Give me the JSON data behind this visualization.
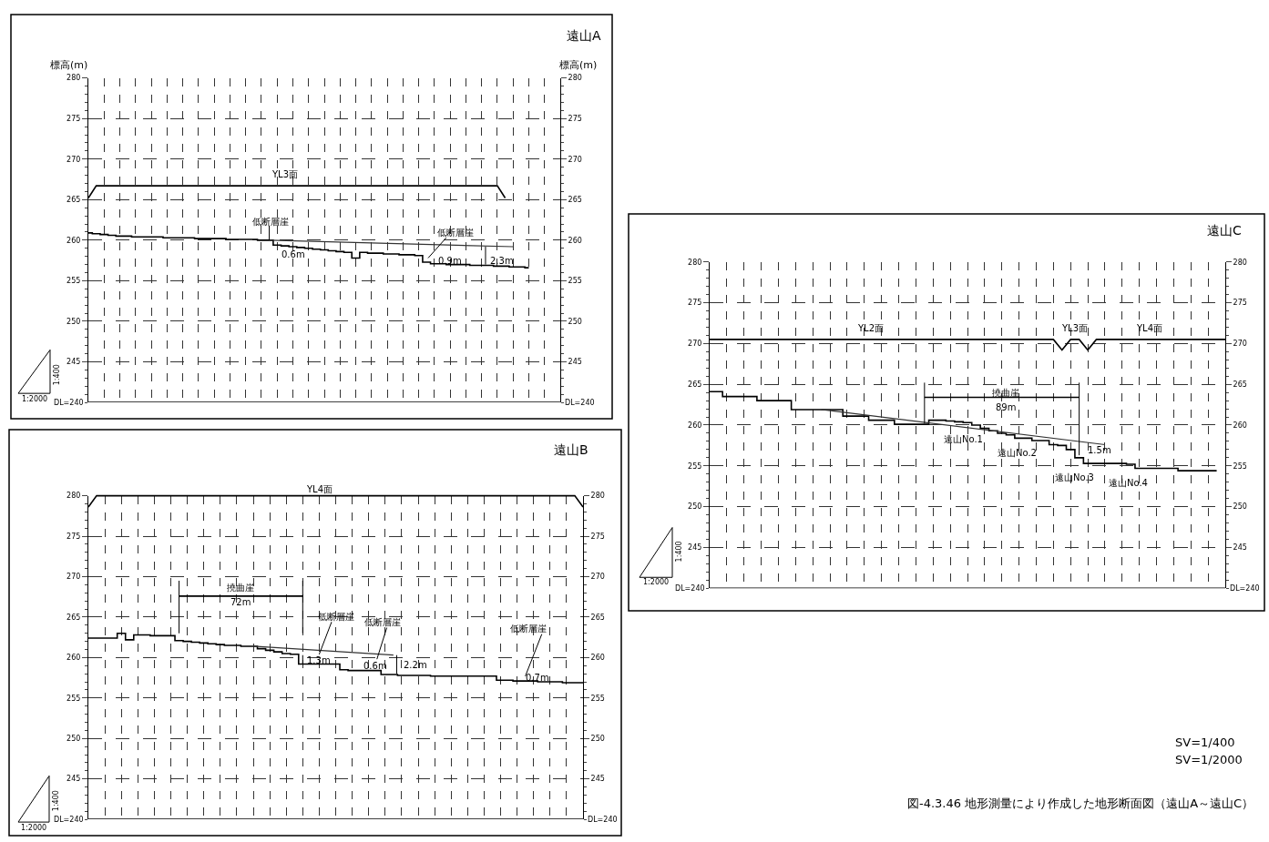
{
  "chart_data": [
    {
      "type": "line",
      "title": "遠山A",
      "ylabel": "標高(m)",
      "y2label": "標高(m)",
      "categories": [
        null,
        null,
        null,
        null,
        null,
        null,
        null,
        null,
        null,
        null,
        null,
        null,
        null,
        null,
        null,
        null,
        null,
        null,
        null,
        null,
        null,
        null,
        null,
        null,
        null,
        null,
        null,
        null,
        null,
        null,
        null,
        null,
        null,
        null,
        null,
        null,
        null,
        null,
        null,
        null,
        null,
        null,
        null,
        null,
        null,
        null,
        null,
        null,
        null,
        null,
        null,
        null,
        null,
        null,
        null,
        null,
        null
      ],
      "series": [
        {
          "type": "step",
          "color": "#000000",
          "values": [
            260.9,
            260.8,
            260.7,
            260.6,
            260.5,
            260.5,
            260.4,
            260.4,
            260.4,
            260.4,
            260.3,
            260.3,
            260.3,
            260.3,
            260.2,
            260.2,
            260.2,
            260.2,
            260.1,
            260.1,
            260.1,
            260.1,
            260.0,
            260.0,
            259.4,
            259.3,
            259.2,
            259.1,
            259.0,
            258.9,
            258.8,
            258.7,
            258.6,
            258.5,
            257.8,
            258.5,
            258.4,
            258.4,
            258.3,
            258.3,
            258.2,
            258.2,
            258.1,
            257.3,
            257.1,
            257.1,
            257.0,
            257.0,
            257.0,
            256.9,
            256.9,
            256.9,
            256.8,
            256.8,
            256.7,
            256.7,
            256.6
          ]
        },
        {
          "type": "line",
          "color": "#333333",
          "values": [
            null,
            null,
            null,
            null,
            null,
            null,
            null,
            null,
            null,
            null,
            null,
            null,
            null,
            null,
            null,
            null,
            null,
            null,
            null,
            null,
            null,
            null,
            null,
            260.0,
            null,
            null,
            null,
            null,
            null,
            null,
            null,
            null,
            null,
            null,
            null,
            null,
            null,
            null,
            null,
            null,
            null,
            null,
            null,
            null,
            null,
            null,
            null,
            null,
            null,
            null,
            null,
            null,
            null,
            null,
            259.2,
            null,
            null
          ]
        },
        {
          "color": "#000000",
          "values": [
            265.2,
            266.7,
            266.7,
            266.7,
            266.7,
            266.7,
            266.7,
            266.7,
            266.7,
            266.7,
            266.7,
            266.7,
            266.7,
            266.7,
            266.7,
            266.7,
            266.7,
            266.7,
            266.7,
            266.7,
            266.7,
            266.7,
            266.7,
            266.7,
            266.7,
            266.7,
            266.7,
            266.7,
            266.7,
            266.7,
            266.7,
            266.7,
            266.7,
            266.7,
            266.7,
            266.7,
            266.7,
            266.7,
            266.7,
            266.7,
            266.7,
            266.7,
            266.7,
            266.7,
            266.7,
            266.7,
            266.7,
            266.7,
            266.7,
            266.7,
            266.7,
            266.7,
            266.7,
            265.2,
            null,
            null,
            null
          ]
        }
      ],
      "ylim": [
        240,
        280
      ],
      "yticks": [
        245,
        250,
        255,
        260,
        265,
        270,
        275,
        280
      ],
      "y2lim": [
        240,
        280
      ],
      "y2ticks": [
        245,
        250,
        255,
        260,
        265,
        270,
        275,
        280
      ],
      "ref_lines": [
        {
          "axis": "y",
          "value": 240,
          "label": "DL=240"
        }
      ],
      "grid": true,
      "tick_labels": "y",
      "annotations": [
        "YL3面",
        "低断層崖",
        "0.6m",
        "低断層崖",
        "0.9m",
        "2.3m",
        "1:400",
        "1:2000"
      ]
    },
    {
      "type": "line",
      "title": "遠山B",
      "categories": [
        null,
        null,
        null,
        null,
        null,
        null,
        null,
        null,
        null,
        null,
        null,
        null,
        null,
        null,
        null,
        null,
        null,
        null,
        null,
        null,
        null,
        null,
        null,
        null,
        null,
        null,
        null,
        null,
        null,
        null,
        null,
        null,
        null,
        null,
        null,
        null,
        null,
        null,
        null,
        null,
        null,
        null,
        null,
        null,
        null,
        null,
        null,
        null,
        null,
        null,
        null,
        null,
        null,
        null,
        null,
        null,
        null,
        null,
        null,
        null,
        null
      ],
      "series": [
        {
          "type": "step",
          "color": "#000000",
          "values": [
            262.4,
            262.4,
            262.4,
            262.4,
            263.0,
            262.2,
            262.8,
            262.8,
            262.7,
            262.7,
            262.7,
            262.1,
            262.0,
            261.9,
            261.8,
            261.7,
            261.6,
            261.5,
            261.5,
            261.4,
            261.4,
            261.1,
            260.9,
            260.7,
            260.5,
            260.4,
            259.2,
            259.2,
            259.2,
            259.2,
            259.2,
            258.5,
            258.4,
            258.4,
            258.4,
            258.4,
            257.9,
            257.9,
            257.8,
            257.8,
            257.8,
            257.8,
            257.7,
            257.7,
            257.7,
            257.7,
            257.7,
            257.7,
            257.7,
            257.7,
            257.2,
            257.2,
            257.1,
            257.1,
            257.1,
            257.0,
            257.0,
            257.0,
            256.9,
            256.9,
            256.9
          ]
        },
        {
          "type": "line",
          "color": "#333333",
          "values": [
            null,
            null,
            null,
            null,
            null,
            null,
            null,
            null,
            null,
            null,
            null,
            null,
            null,
            null,
            null,
            null,
            null,
            null,
            null,
            null,
            261.4,
            null,
            null,
            null,
            null,
            null,
            null,
            null,
            null,
            null,
            null,
            null,
            null,
            null,
            null,
            null,
            null,
            260.3,
            null,
            null,
            null,
            null,
            null,
            null,
            null,
            null,
            null,
            null,
            null,
            null,
            null,
            null,
            null,
            null,
            null,
            null,
            null,
            null,
            null,
            null,
            null
          ]
        },
        {
          "color": "#000000",
          "values": [
            278.6,
            280,
            280,
            280,
            280,
            280,
            280,
            280,
            280,
            280,
            280,
            280,
            280,
            280,
            280,
            280,
            280,
            280,
            280,
            280,
            280,
            280,
            280,
            280,
            280,
            280,
            280,
            280,
            280,
            280,
            280,
            280,
            280,
            280,
            280,
            280,
            280,
            280,
            280,
            280,
            280,
            280,
            280,
            280,
            280,
            280,
            280,
            280,
            280,
            280,
            280,
            280,
            280,
            280,
            280,
            280,
            280,
            280,
            280,
            280,
            278.6
          ]
        },
        {
          "color": "#000000",
          "errors": [
            null,
            null,
            null,
            null,
            null,
            null,
            null,
            null,
            null,
            null,
            null,
            [
              263.0,
              269.5
            ],
            null,
            null,
            null,
            null,
            null,
            null,
            null,
            null,
            null,
            null,
            null,
            null,
            null,
            null,
            [
              263.0,
              269.5
            ],
            null,
            null,
            null,
            null,
            null,
            null,
            null,
            null,
            null,
            null,
            null,
            null,
            null,
            null,
            null,
            null,
            null,
            null,
            null,
            null,
            null,
            null,
            null,
            null,
            null,
            null,
            null,
            null,
            null,
            null,
            null,
            null,
            null,
            null
          ],
          "values": [
            null,
            null,
            null,
            null,
            null,
            null,
            null,
            null,
            null,
            null,
            null,
            267.6,
            267.6,
            267.6,
            267.6,
            267.6,
            267.6,
            267.6,
            267.6,
            267.6,
            267.6,
            267.6,
            267.6,
            267.6,
            267.6,
            267.6,
            267.6,
            null,
            null,
            null,
            null,
            null,
            null,
            null,
            null,
            null,
            null,
            null,
            null,
            null,
            null,
            null,
            null,
            null,
            null,
            null,
            null,
            null,
            null,
            null,
            null,
            null,
            null,
            null,
            null,
            null,
            null,
            null,
            null,
            null,
            null
          ]
        }
      ],
      "ylim": [
        240,
        280
      ],
      "yticks": [
        245,
        250,
        255,
        260,
        265,
        270,
        275,
        280
      ],
      "y2lim": [
        240,
        280
      ],
      "y2ticks": [
        245,
        250,
        255,
        260,
        265,
        270,
        275,
        280
      ],
      "ref_lines": [
        {
          "axis": "y",
          "value": 240,
          "label": "DL=240"
        }
      ],
      "grid": true,
      "tick_labels": "y",
      "annotations": [
        "YL4面",
        "撓曲崖",
        "72m",
        "低断層崖",
        "低断層崖",
        "低断層崖",
        "1.3m",
        "0.6m",
        "2.2m",
        "0.7m",
        "1:400",
        "1:2000"
      ]
    },
    {
      "type": "line",
      "title": "遠山C",
      "categories": [
        null,
        null,
        null,
        null,
        null,
        null,
        null,
        null,
        null,
        null,
        null,
        null,
        null,
        null,
        null,
        null,
        null,
        null,
        null,
        null,
        null,
        null,
        null,
        null,
        null,
        null,
        null,
        null,
        null,
        null,
        null,
        null,
        null,
        null,
        null,
        null,
        null,
        null,
        null,
        null,
        null,
        null,
        null,
        null,
        null,
        null,
        null,
        null,
        null,
        null,
        null,
        null,
        null,
        null,
        null,
        null,
        null,
        null,
        null,
        null,
        null
      ],
      "series": [
        {
          "type": "step",
          "color": "#000000",
          "values": [
            264.1,
            264.1,
            263.5,
            263.5,
            263.5,
            263.5,
            263.0,
            263.0,
            263.0,
            263.0,
            261.9,
            261.9,
            261.9,
            261.9,
            261.9,
            261.9,
            261.1,
            261.1,
            261.1,
            260.6,
            260.6,
            260.6,
            260.1,
            260.1,
            260.1,
            260.1,
            260.6,
            260.6,
            260.5,
            260.4,
            260.3,
            260.0,
            259.6,
            259.3,
            259.0,
            258.8,
            258.4,
            258.4,
            258.1,
            258.1,
            257.6,
            257.5,
            257.0,
            256.0,
            255.3,
            255.3,
            255.3,
            255.3,
            255.3,
            255.2,
            254.7,
            254.7,
            254.7,
            254.7,
            254.7,
            254.4,
            254.4,
            254.4,
            254.4,
            254.4,
            null
          ]
        },
        {
          "type": "line",
          "color": "#333333",
          "values": [
            null,
            null,
            null,
            null,
            null,
            null,
            null,
            null,
            null,
            null,
            null,
            null,
            null,
            261.9,
            null,
            null,
            null,
            null,
            null,
            null,
            null,
            null,
            null,
            null,
            null,
            null,
            null,
            null,
            null,
            null,
            null,
            null,
            null,
            null,
            null,
            null,
            null,
            null,
            null,
            null,
            null,
            null,
            null,
            null,
            null,
            null,
            257.6,
            null,
            null,
            null,
            null,
            null,
            null,
            null,
            null,
            null,
            null,
            null,
            null,
            null,
            null
          ]
        },
        {
          "color": "#000000",
          "values": [
            270.5,
            270.5,
            270.5,
            270.5,
            270.5,
            270.5,
            270.5,
            270.5,
            270.5,
            270.5,
            270.5,
            270.5,
            270.5,
            270.5,
            270.5,
            270.5,
            270.5,
            270.5,
            270.5,
            270.5,
            270.5,
            270.5,
            270.5,
            270.5,
            270.5,
            270.5,
            270.5,
            270.5,
            270.5,
            270.5,
            270.5,
            270.5,
            270.5,
            270.5,
            270.5,
            270.5,
            270.5,
            270.5,
            270.5,
            270.5,
            270.5,
            269.2,
            270.5,
            270.5,
            269.2,
            270.5,
            270.5,
            270.5,
            270.5,
            270.5,
            270.5,
            270.5,
            270.5,
            270.5,
            270.5,
            270.5,
            270.5,
            270.5,
            270.5,
            270.5,
            270.5
          ]
        },
        {
          "color": "#000000",
          "errors": [
            null,
            null,
            null,
            null,
            null,
            null,
            null,
            null,
            null,
            null,
            null,
            null,
            null,
            null,
            null,
            null,
            null,
            null,
            null,
            null,
            null,
            null,
            null,
            null,
            null,
            [
              260.2,
              265.2
            ],
            null,
            null,
            null,
            null,
            null,
            null,
            null,
            null,
            null,
            null,
            null,
            null,
            null,
            null,
            null,
            null,
            null,
            [
              256.3,
              265.2
            ],
            null,
            null,
            null,
            null,
            null,
            null,
            null,
            null,
            null,
            null,
            null,
            null,
            null,
            null,
            null,
            null,
            null
          ],
          "values": [
            null,
            null,
            null,
            null,
            null,
            null,
            null,
            null,
            null,
            null,
            null,
            null,
            null,
            null,
            null,
            null,
            null,
            null,
            null,
            null,
            null,
            null,
            null,
            null,
            null,
            263.4,
            263.4,
            263.4,
            263.4,
            263.4,
            263.4,
            263.4,
            263.4,
            263.4,
            263.4,
            263.4,
            263.4,
            263.4,
            263.4,
            263.4,
            263.4,
            263.4,
            263.4,
            263.4,
            null,
            null,
            null,
            null,
            null,
            null,
            null,
            null,
            null,
            null,
            null,
            null,
            null,
            null,
            null,
            null,
            null
          ]
        }
      ],
      "ylim": [
        240,
        280
      ],
      "yticks": [
        245,
        250,
        255,
        260,
        265,
        270,
        275,
        280
      ],
      "y2lim": [
        240,
        280
      ],
      "y2ticks": [
        245,
        250,
        255,
        260,
        265,
        270,
        275,
        280
      ],
      "ref_lines": [
        {
          "axis": "y",
          "value": 240,
          "label": "DL=240"
        }
      ],
      "grid": true,
      "tick_labels": "y",
      "annotations": [
        "YL2面",
        "YL3面",
        "YL4面",
        "撓曲崖",
        "89m",
        "遠山No.1",
        "遠山No.2",
        "1.5m",
        "遠山No.3",
        "遠山No.4",
        "1:400",
        "1:2000",
        "SV=1/400",
        "SV=1/2000",
        "図-4.3.46 地形測量により作成した地形断面図（遠山A～遠山C）"
      ]
    }
  ]
}
